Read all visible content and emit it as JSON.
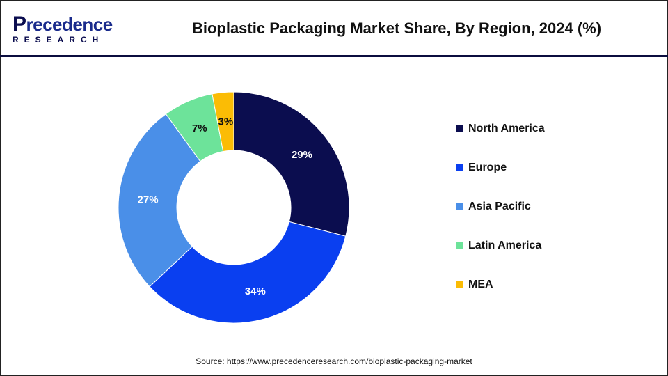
{
  "logo": {
    "main_initial": "P",
    "main_rest": "recedence",
    "sub": "RESEARCH"
  },
  "title": "Bioplastic Packaging Market Share, By Region, 2024 (%)",
  "source": "Source: https://www.precedenceresearch.com/bioplastic-packaging-market",
  "chart_data": {
    "type": "pie",
    "donut": true,
    "title": "Bioplastic Packaging Market Share, By Region, 2024 (%)",
    "categories": [
      "North America",
      "Europe",
      "Asia Pacific",
      "Latin America",
      "MEA"
    ],
    "values": [
      29,
      34,
      27,
      7,
      3
    ],
    "labels": [
      "29%",
      "34%",
      "27%",
      "7%",
      "3%"
    ],
    "colors": [
      "#0b0d4f",
      "#0a3ff0",
      "#4a8fe8",
      "#6de39a",
      "#fbbc05"
    ],
    "label_colors": [
      "#ffffff",
      "#ffffff",
      "#ffffff",
      "#111111",
      "#111111"
    ],
    "legend_position": "right",
    "start": "top",
    "direction": "clockwise"
  }
}
